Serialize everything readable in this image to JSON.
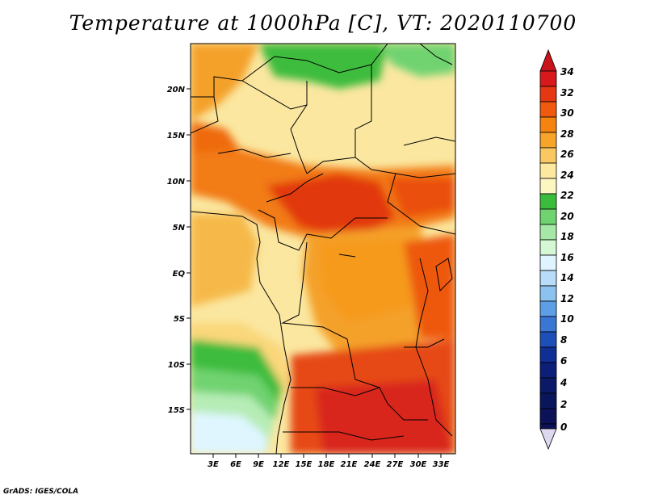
{
  "title": "Temperature at 1000hPa [C], VT: 2020110700",
  "credit": "GrADS: IGES/COLA",
  "map": {
    "lat_labels": [
      "20N",
      "15N",
      "10N",
      "5N",
      "EQ",
      "5S",
      "10S",
      "15S"
    ],
    "lon_labels": [
      "3E",
      "6E",
      "9E",
      "12E",
      "15E",
      "18E",
      "21E",
      "24E",
      "27E",
      "30E",
      "33E"
    ]
  },
  "colorbar": {
    "labels": [
      "34",
      "32",
      "30",
      "28",
      "26",
      "24",
      "22",
      "20",
      "18",
      "16",
      "14",
      "12",
      "10",
      "8",
      "6",
      "4",
      "2",
      "0"
    ],
    "colors": [
      "#d7191c",
      "#e53712",
      "#ef5a0f",
      "#f4830f",
      "#f6a42a",
      "#fac863",
      "#fde8a0",
      "#fcf7c0",
      "#3cbc3c",
      "#6fd36f",
      "#a6e9a6",
      "#d3f8d3",
      "#dff4ff",
      "#b7dcf7",
      "#8cc2f0",
      "#5e9ee6",
      "#3a76d4",
      "#1e4fb8",
      "#0f2f95",
      "#0b1e78"
    ]
  }
}
